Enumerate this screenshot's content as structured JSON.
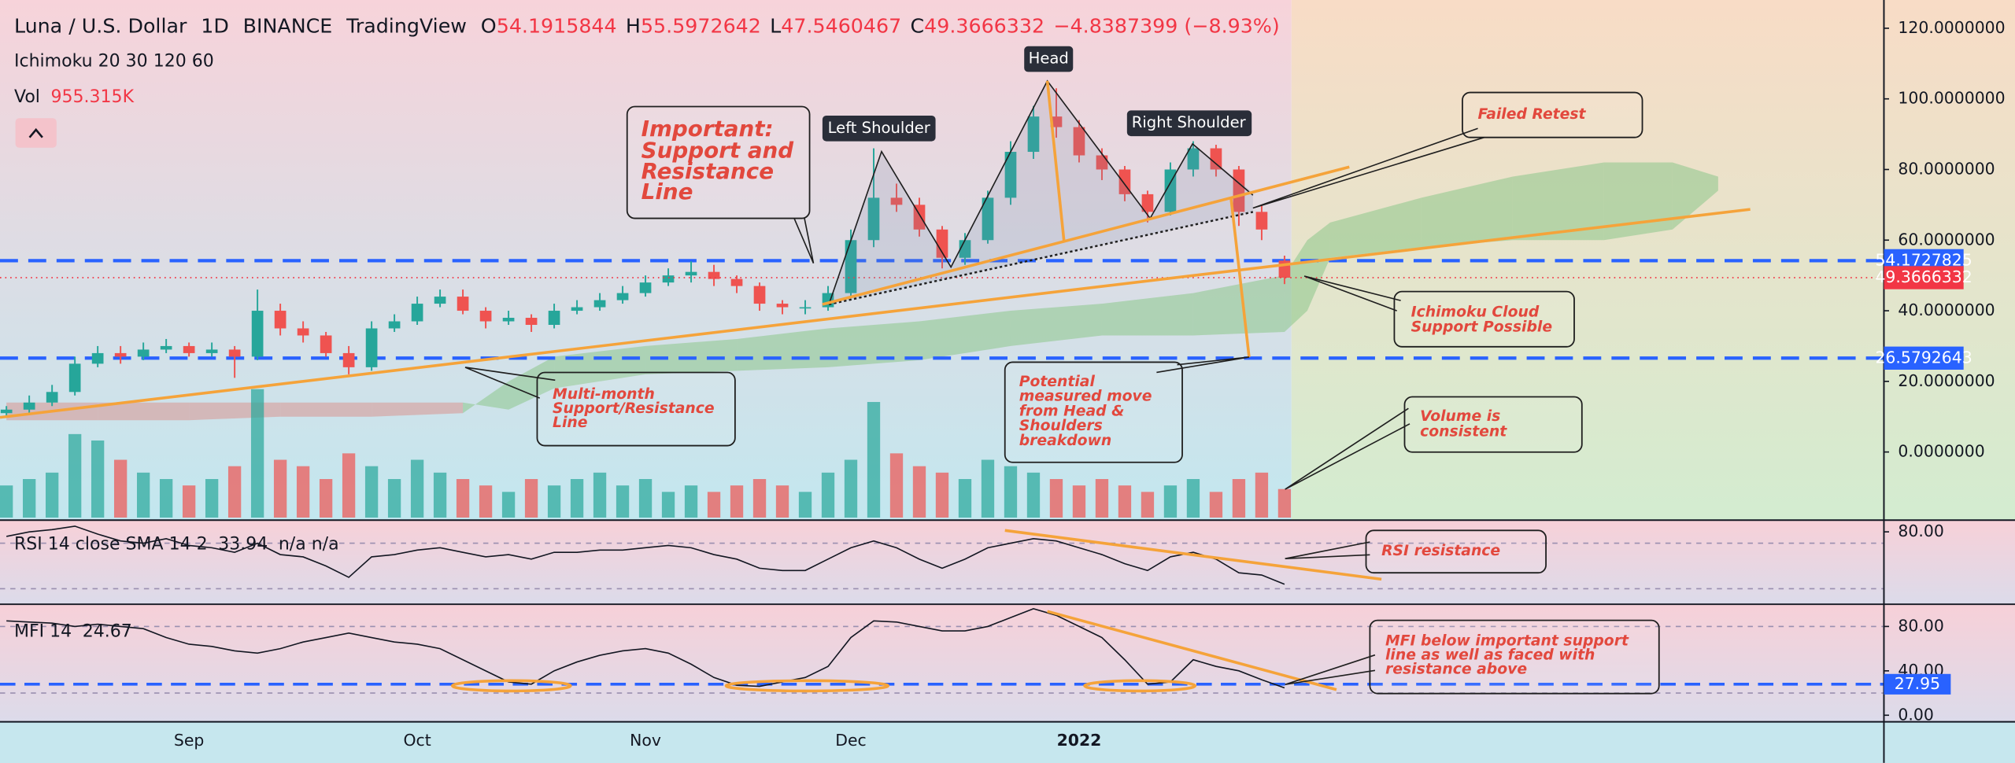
{
  "chart_data": [
    {
      "type": "candlestick",
      "title": "Luna / U.S. Dollar",
      "interval": "1D",
      "exchange": "BINANCE",
      "source": "TradingView",
      "ohlc_prefixes": [
        "O",
        "H",
        "L",
        "C"
      ],
      "change": {
        "value": -4.8387399,
        "label": "−4.8387399"
      },
      "change_pct": {
        "value": -8.93,
        "label": "(−8.93%)"
      },
      "indicator": "Ichimoku 20 30 120 60",
      "categories": [
        null,
        null,
        null,
        null,
        null,
        null,
        null,
        null,
        "Sep",
        null,
        null,
        null,
        null,
        null,
        null,
        null,
        null,
        null,
        "Oct",
        null,
        null,
        null,
        null,
        null,
        null,
        null,
        null,
        null,
        "Nov",
        null,
        null,
        null,
        null,
        null,
        null,
        null,
        null,
        "Dec",
        null,
        null,
        null,
        null,
        null,
        null,
        null,
        null,
        null,
        "2022",
        null,
        null,
        null,
        null,
        null,
        null,
        null,
        null,
        null
      ],
      "open": [
        11,
        12,
        14,
        17,
        25,
        28,
        27,
        29,
        30,
        28,
        29,
        27,
        40,
        35,
        33,
        28,
        24,
        35,
        37,
        42,
        44,
        40,
        37,
        38,
        36,
        40,
        41,
        43,
        45,
        48,
        50,
        51,
        49,
        47,
        42,
        41,
        41,
        45,
        60,
        72,
        70,
        63,
        55,
        60,
        72,
        85,
        95,
        92,
        84,
        80,
        73,
        68,
        80,
        86,
        80,
        68,
        54.1915844
      ],
      "high": [
        13,
        16,
        19,
        27,
        30,
        30,
        31,
        32,
        31,
        31,
        30,
        46,
        42,
        37,
        34,
        30,
        37,
        39,
        44,
        46,
        46,
        41,
        40,
        39,
        42,
        43,
        45,
        47,
        50,
        52,
        54,
        53,
        50,
        48,
        43,
        43,
        47,
        63,
        86,
        76,
        72,
        64,
        62,
        74,
        88,
        98,
        103,
        94,
        86,
        81,
        74,
        82,
        88,
        87,
        81,
        70,
        55.5972642
      ],
      "low": [
        10,
        11,
        13,
        16,
        24,
        25,
        26,
        28,
        27,
        27,
        21,
        26,
        33,
        31,
        27,
        22,
        23,
        34,
        36,
        41,
        39,
        35,
        36,
        34,
        35,
        39,
        40,
        42,
        44,
        47,
        48,
        47,
        45,
        40,
        39,
        39,
        40,
        44,
        58,
        68,
        61,
        52,
        53,
        59,
        70,
        83,
        89,
        82,
        77,
        71,
        65,
        67,
        78,
        78,
        64,
        60,
        47.5460467
      ],
      "close": [
        12,
        14,
        17,
        25,
        28,
        27,
        29,
        30,
        28,
        29,
        27,
        40,
        35,
        33,
        28,
        24,
        35,
        37,
        42,
        44,
        40,
        37,
        38,
        36,
        40,
        41,
        43,
        45,
        48,
        50,
        51,
        49,
        47,
        42,
        41,
        41,
        45,
        60,
        72,
        70,
        63,
        55,
        60,
        72,
        85,
        95,
        92,
        84,
        80,
        73,
        68,
        80,
        86,
        80,
        68,
        63,
        49.3666332
      ],
      "up_color": "#26a69a",
      "down_color": "#ef5350",
      "last_price_color": "#f23645",
      "volume": {
        "name": "Vol",
        "value_label": "955.315K",
        "values": [
          1075,
          1290,
          1505,
          2795,
          2580,
          1935,
          1505,
          1290,
          1075,
          1290,
          1720,
          4300,
          1935,
          1720,
          1290,
          2150,
          1720,
          1290,
          1935,
          1505,
          1290,
          1075,
          860,
          1290,
          1075,
          1290,
          1505,
          1075,
          1290,
          860,
          1075,
          860,
          1075,
          1290,
          1075,
          860,
          1505,
          1935,
          3870,
          2150,
          1720,
          1505,
          1290,
          1935,
          1720,
          1505,
          1290,
          1075,
          1290,
          1075,
          860,
          1075,
          1290,
          860,
          1290,
          1505,
          955.315
        ]
      },
      "cloud": {
        "x": [
          0,
          4,
          8,
          12,
          16,
          20,
          22,
          24,
          28,
          32,
          36,
          40,
          44,
          48,
          52,
          56,
          57,
          58,
          62,
          66,
          70,
          73,
          75
        ],
        "span_a": [
          9,
          9,
          9,
          10,
          10,
          11,
          20,
          27,
          30,
          32,
          35,
          37,
          40,
          42,
          45,
          50,
          60,
          65,
          72,
          78,
          82,
          82,
          78
        ],
        "span_b": [
          14,
          14,
          14,
          14,
          14,
          14,
          12,
          18,
          22,
          23,
          24,
          26,
          30,
          33,
          33,
          34,
          40,
          55,
          58,
          60,
          60,
          63,
          74
        ],
        "up_color": "#8cc78a",
        "down_color": "#d9958f"
      },
      "levels": [
        {
          "value": 54.1727825,
          "color": "#2962ff"
        },
        {
          "value": 26.5792643,
          "color": "#2962ff"
        }
      ],
      "ylim": [
        -19.3,
        128
      ],
      "yticks": [
        {
          "value": 0,
          "label": "0.0000000"
        },
        {
          "value": 20,
          "label": "20.0000000"
        },
        {
          "value": 40,
          "label": "40.0000000"
        },
        {
          "value": 60,
          "label": "60.0000000"
        },
        {
          "value": 80,
          "label": "80.0000000"
        },
        {
          "value": 100,
          "label": "100.0000000"
        },
        {
          "value": 120,
          "label": "120.0000000"
        }
      ]
    },
    {
      "type": "line",
      "title": "RSI 14 close SMA 14 2",
      "extra": "n/a n/a",
      "color": "#131722",
      "values": [
        76,
        80,
        82,
        85,
        78,
        72,
        70,
        74,
        68,
        66,
        62,
        70,
        60,
        58,
        50,
        40,
        58,
        60,
        64,
        66,
        62,
        58,
        60,
        56,
        62,
        62,
        64,
        64,
        66,
        68,
        66,
        60,
        56,
        48,
        46,
        46,
        56,
        66,
        72,
        66,
        56,
        48,
        56,
        66,
        70,
        74,
        72,
        66,
        60,
        52,
        46,
        58,
        62,
        56,
        44,
        42,
        33.94
      ],
      "ylim": [
        16.3,
        90.3
      ],
      "yticks": [
        {
          "value": 80,
          "label": "80.00"
        }
      ],
      "bands": [
        70,
        30
      ]
    },
    {
      "type": "line",
      "title": "MFI 14",
      "color": "#131722",
      "values": [
        85,
        84,
        83,
        80,
        82,
        80,
        78,
        70,
        64,
        62,
        58,
        56,
        60,
        66,
        70,
        74,
        70,
        66,
        64,
        60,
        50,
        40,
        30,
        28,
        40,
        48,
        54,
        58,
        60,
        56,
        46,
        34,
        27,
        26,
        30,
        34,
        44,
        70,
        85,
        84,
        80,
        76,
        76,
        80,
        88,
        96,
        90,
        80,
        70,
        50,
        28,
        30,
        50,
        44,
        40,
        32,
        24.67
      ],
      "ylim": [
        -5.9,
        100
      ],
      "yticks": [
        {
          "value": 80,
          "label": "80.00"
        },
        {
          "value": 40,
          "label": "40.00"
        },
        {
          "value": 0,
          "label": "0.00"
        }
      ],
      "bands": [
        80,
        20
      ],
      "level": {
        "value": 27.95,
        "color": "#2962ff"
      }
    }
  ],
  "annotations": {
    "support_note": [
      "Important:",
      "Support and",
      "Resistance",
      "Line"
    ],
    "left_shoulder": "Left Shoulder",
    "head": "Head",
    "right_shoulder": "Right Shoulder",
    "failed_retest": "Failed Retest",
    "cloud_note": [
      "Ichimoku Cloud",
      "Support Possible"
    ],
    "multi_month": [
      "Multi-month",
      "Support/Resistance",
      "Line"
    ],
    "measured_move": [
      "Potential",
      "measured move",
      "from Head &",
      "Shoulders",
      "breakdown"
    ],
    "volume_note": [
      "Volume is",
      "consistent"
    ],
    "rsi_note": "RSI resistance",
    "mfi_note": [
      "MFI below important support",
      "line as well as faced with",
      "resistance above"
    ]
  }
}
